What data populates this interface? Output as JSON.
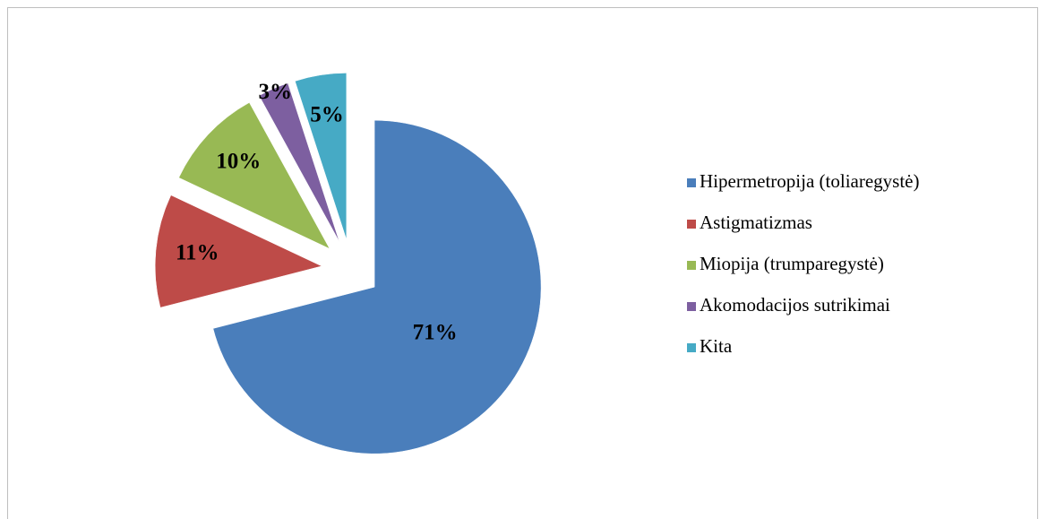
{
  "chart_data": {
    "type": "pie",
    "categories": [
      "Hipermetropija (toliaregystė)",
      "Astigmatizmas",
      "Miopija (trumparegystė)",
      "Akomodacijos sutrikimai",
      "Kita"
    ],
    "values": [
      71,
      11,
      10,
      3,
      5
    ],
    "value_labels": [
      "71%",
      "11%",
      "10%",
      "3%",
      "5%"
    ],
    "colors": [
      "#4a7ebb",
      "#be4b48",
      "#98b954",
      "#7d5fa0",
      "#46aac5"
    ],
    "legend": "right"
  }
}
